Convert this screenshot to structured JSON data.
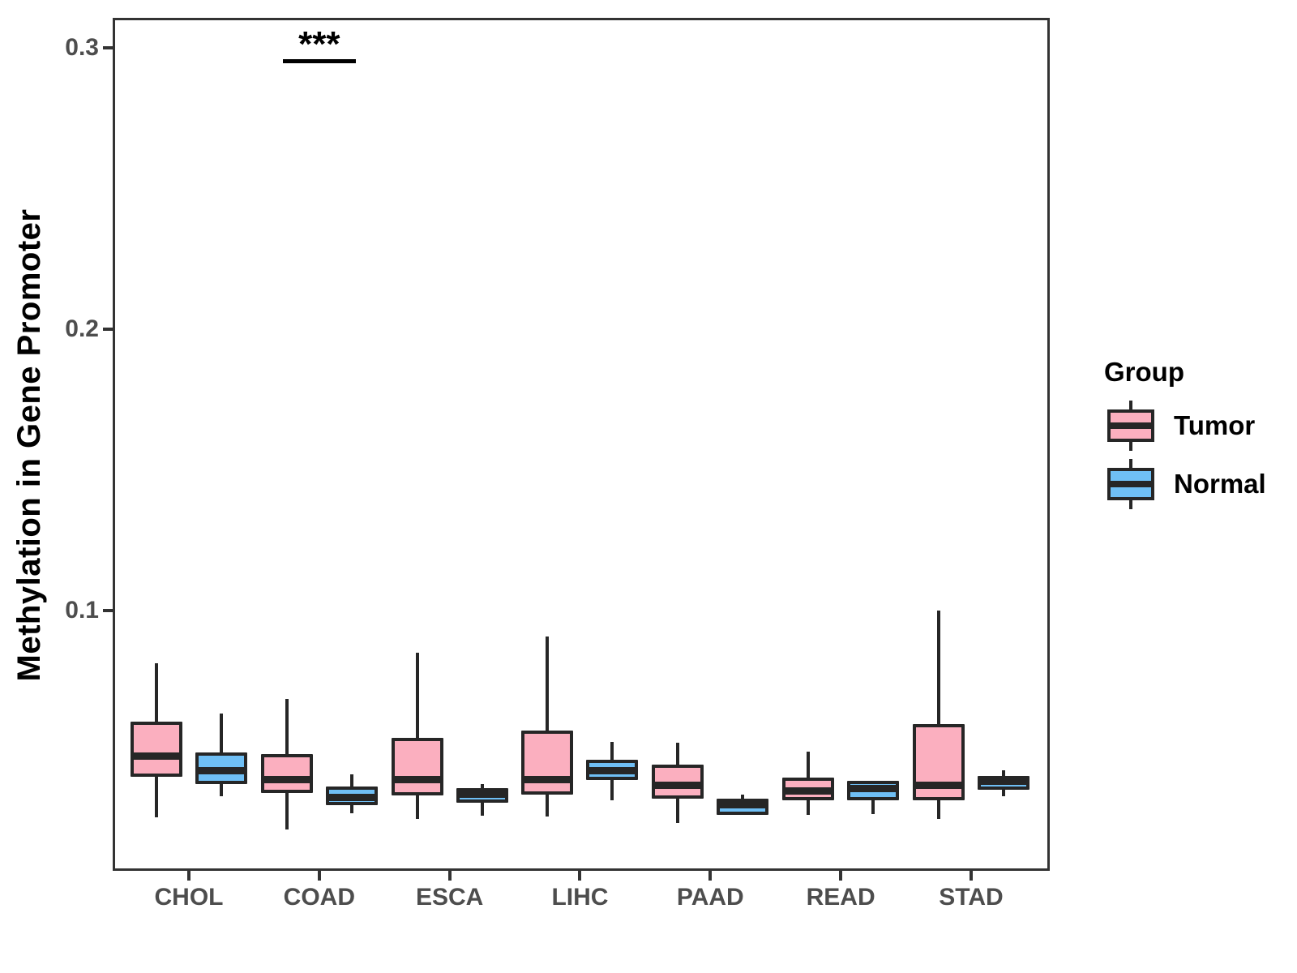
{
  "figure": {
    "y_axis_title": "Methylation in Gene Promoter"
  },
  "legend": {
    "title": "Group",
    "items": [
      {
        "label": "Tumor",
        "color": "#FBAFBF"
      },
      {
        "label": "Normal",
        "color": "#6FBFF5"
      }
    ]
  },
  "colors": {
    "box_outline": "#262626",
    "axis_text": "#4D4D4D",
    "panel_border": "#333333",
    "annotation": "#000000",
    "tumor_fill": "#FBAFBF",
    "normal_fill": "#6FBFF5"
  },
  "chart_data": {
    "type": "boxplot",
    "title": "",
    "xlabel": "",
    "ylabel": "Methylation in Gene Promoter",
    "categories": [
      "CHOL",
      "COAD",
      "ESCA",
      "LIHC",
      "PAAD",
      "READ",
      "STAD"
    ],
    "y_ticks": [
      0.1,
      0.2,
      0.3
    ],
    "ylim": [
      0.008,
      0.31
    ],
    "grid": false,
    "legend_position": "right",
    "series": [
      {
        "name": "Tumor",
        "color": "#FBAFBF",
        "boxes": [
          {
            "category": "CHOL",
            "whisker_low": 0.0265,
            "q1": 0.0409,
            "median": 0.0484,
            "q3": 0.0605,
            "whisker_high": 0.0813
          },
          {
            "category": "COAD",
            "whisker_low": 0.0222,
            "q1": 0.0352,
            "median": 0.0398,
            "q3": 0.049,
            "whisker_high": 0.0686
          },
          {
            "category": "ESCA",
            "whisker_low": 0.0259,
            "q1": 0.0343,
            "median": 0.0398,
            "q3": 0.0548,
            "whisker_high": 0.085
          },
          {
            "category": "LIHC",
            "whisker_low": 0.0268,
            "q1": 0.0346,
            "median": 0.0398,
            "q3": 0.0573,
            "whisker_high": 0.0908
          },
          {
            "category": "PAAD",
            "whisker_low": 0.0245,
            "q1": 0.0332,
            "median": 0.0378,
            "q3": 0.0452,
            "whisker_high": 0.053
          },
          {
            "category": "READ",
            "whisker_low": 0.0274,
            "q1": 0.0326,
            "median": 0.036,
            "q3": 0.0406,
            "whisker_high": 0.0499
          },
          {
            "category": "STAD",
            "whisker_low": 0.0259,
            "q1": 0.0326,
            "median": 0.038,
            "q3": 0.0597,
            "whisker_high": 0.1
          }
        ]
      },
      {
        "name": "Normal",
        "color": "#6FBFF5",
        "boxes": [
          {
            "category": "CHOL",
            "whisker_low": 0.034,
            "q1": 0.0383,
            "median": 0.0432,
            "q3": 0.0496,
            "whisker_high": 0.0634
          },
          {
            "category": "COAD",
            "whisker_low": 0.0279,
            "q1": 0.0308,
            "median": 0.0337,
            "q3": 0.0375,
            "whisker_high": 0.0418
          },
          {
            "category": "ESCA",
            "whisker_low": 0.0271,
            "q1": 0.0317,
            "median": 0.0346,
            "q3": 0.0369,
            "whisker_high": 0.0383
          },
          {
            "category": "LIHC",
            "whisker_low": 0.0326,
            "q1": 0.0398,
            "median": 0.0432,
            "q3": 0.047,
            "whisker_high": 0.0533
          },
          {
            "category": "PAAD",
            "whisker_low": 0.0274,
            "q1": 0.0274,
            "median": 0.031,
            "q3": 0.0332,
            "whisker_high": 0.0346
          },
          {
            "category": "READ",
            "whisker_low": 0.0277,
            "q1": 0.0326,
            "median": 0.0368,
            "q3": 0.0395,
            "whisker_high": 0.0395
          },
          {
            "category": "STAD",
            "whisker_low": 0.034,
            "q1": 0.0363,
            "median": 0.0392,
            "q3": 0.0412,
            "whisker_high": 0.0432
          }
        ]
      }
    ],
    "annotations": [
      {
        "text": "***",
        "category": "COAD",
        "line_y": 0.296
      }
    ]
  }
}
